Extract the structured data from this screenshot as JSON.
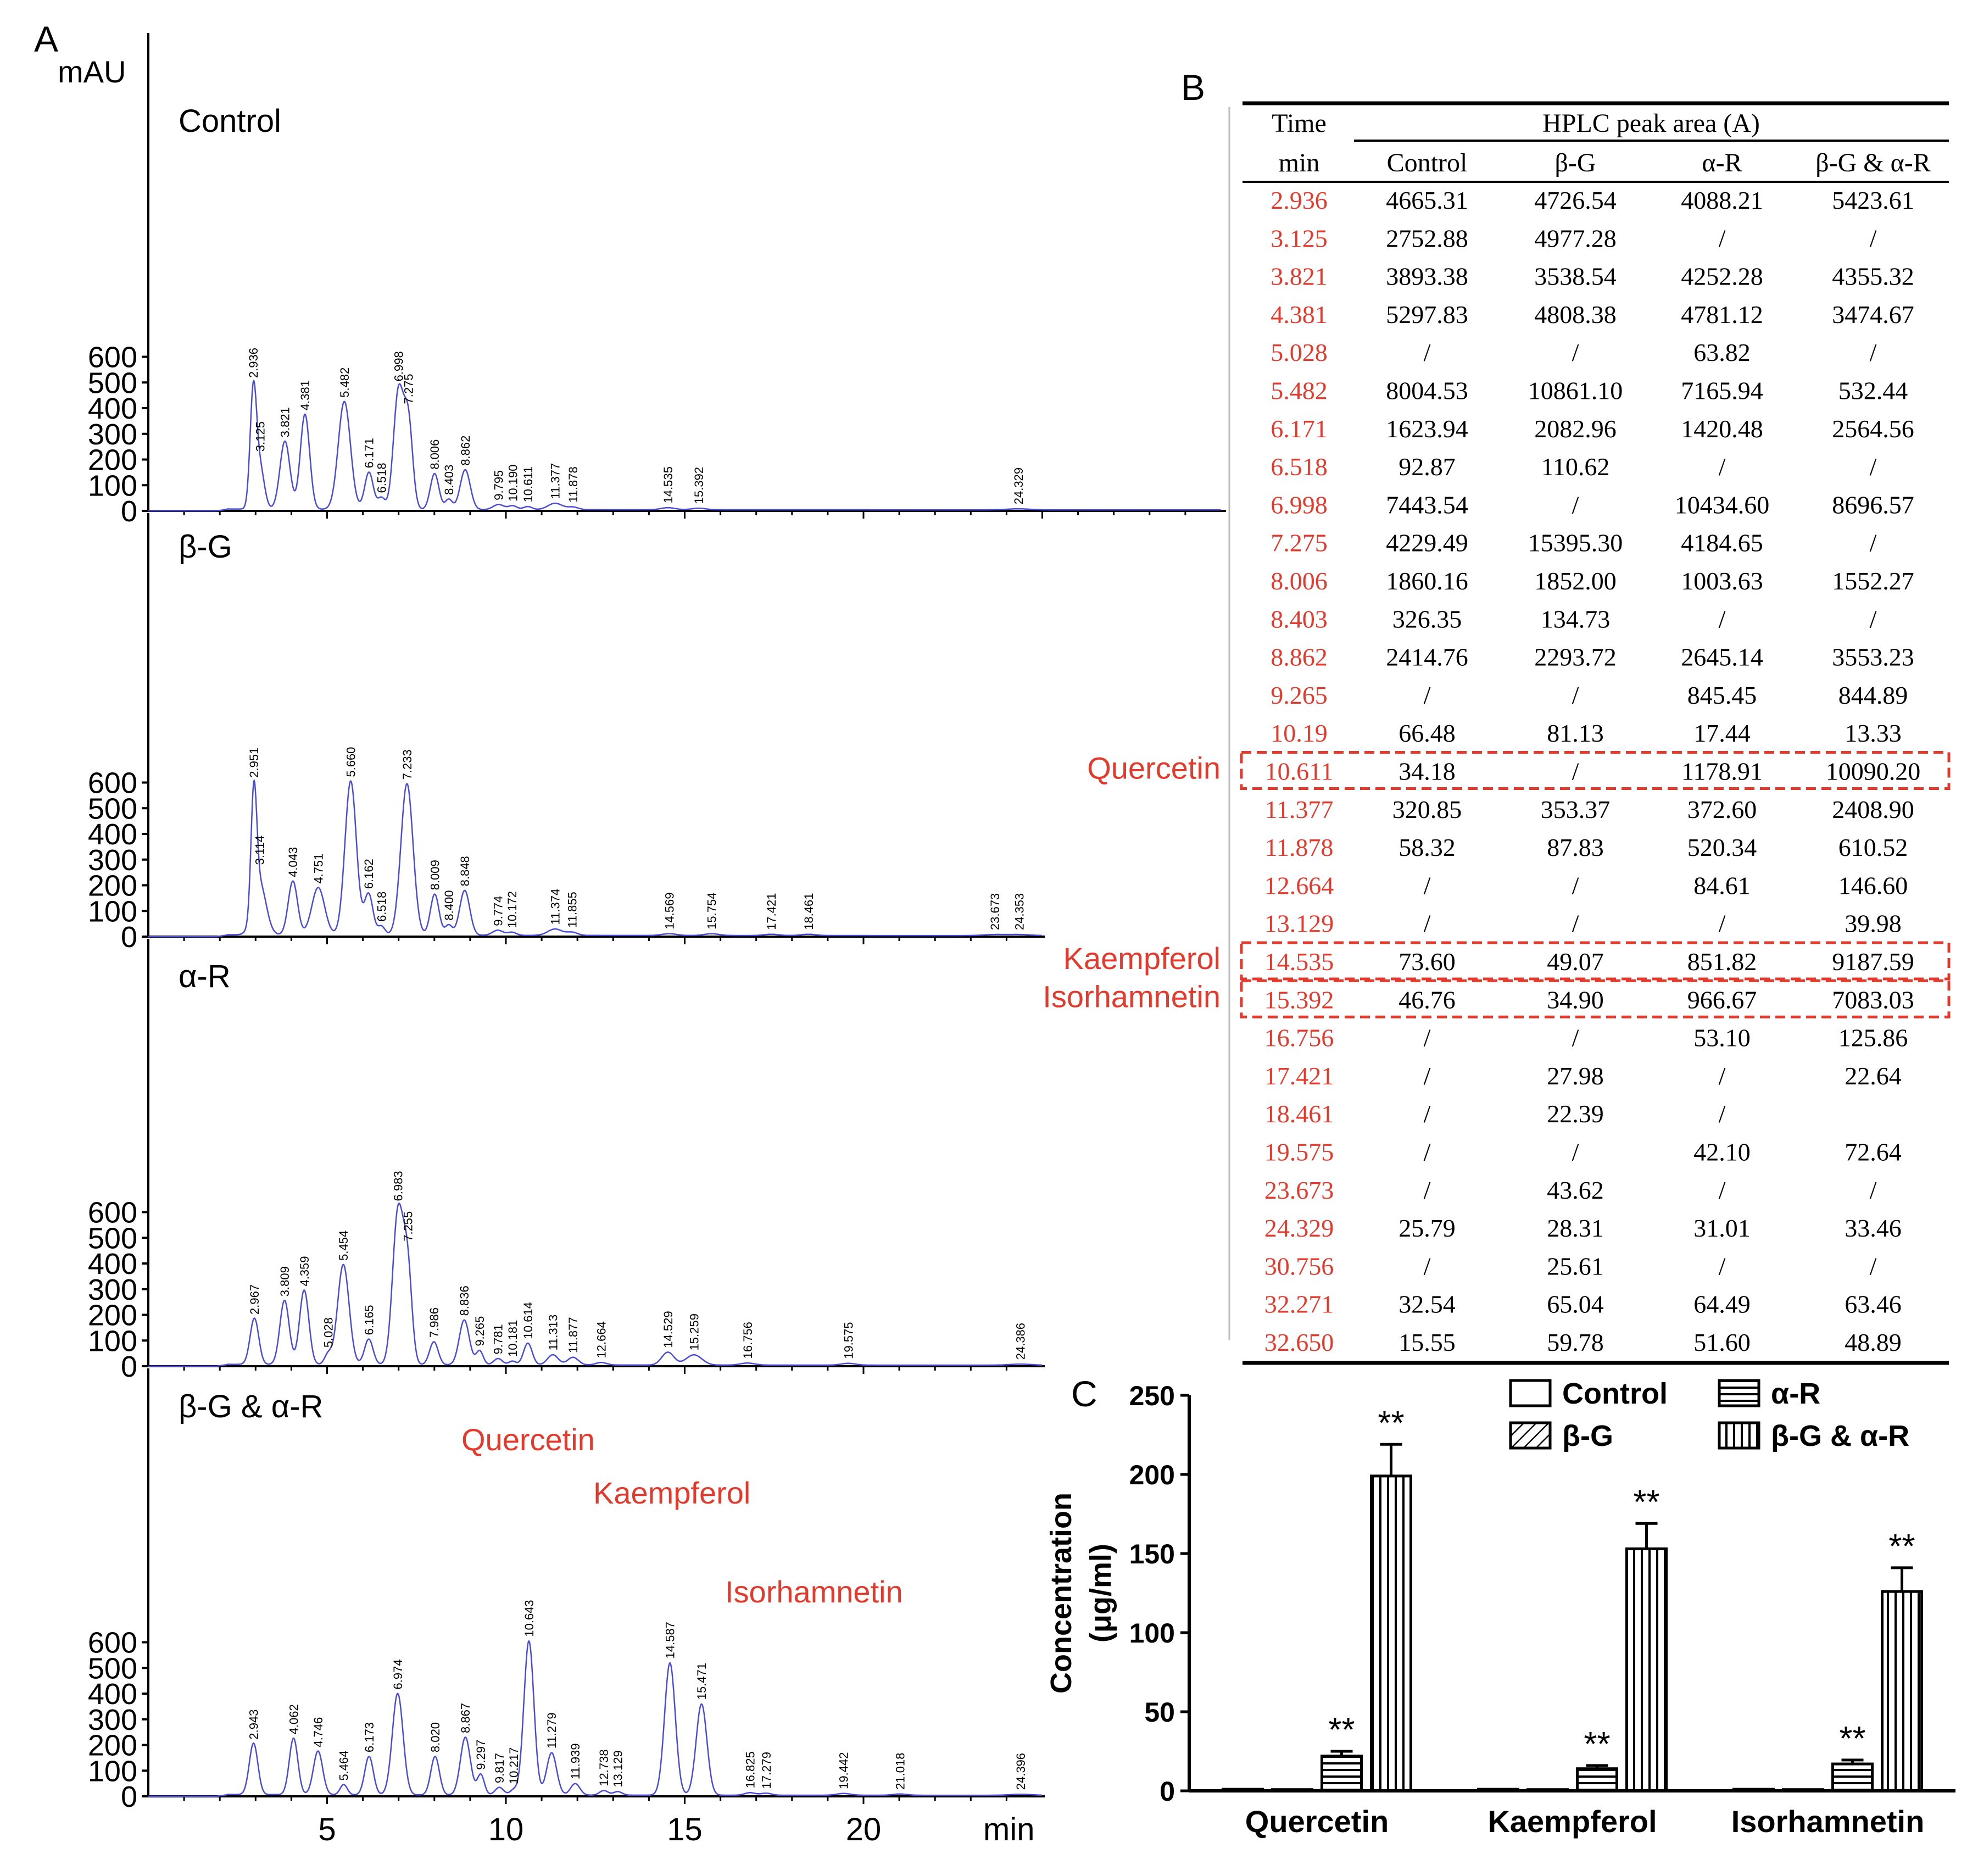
{
  "panel_labels": {
    "a": "A",
    "b": "B",
    "c": "C"
  },
  "colors": {
    "trace": "#4a4cd6",
    "red": "#e23b2e",
    "black": "#000000"
  },
  "chart_data": [
    {
      "type": "line",
      "id": "chromatograms",
      "ylabel": "mAU",
      "xlabel": "min",
      "xlim": [
        0,
        25
      ],
      "xticks": [
        "5",
        "10",
        "15",
        "20"
      ],
      "ylim": [
        0,
        620
      ],
      "yticks": [
        "0",
        "100",
        "200",
        "300",
        "400",
        "500",
        "600"
      ],
      "panels": [
        {
          "name": "Control",
          "xmax": 30,
          "peaks": [
            [
              2.936,
              450,
              0.09
            ],
            [
              3.125,
              160,
              0.12
            ],
            [
              3.821,
              265,
              0.14
            ],
            [
              4.381,
              370,
              0.13
            ],
            [
              5.482,
              420,
              0.17
            ],
            [
              6.171,
              145,
              0.12
            ],
            [
              6.518,
              45,
              0.1
            ],
            [
              6.998,
              460,
              0.14
            ],
            [
              7.275,
              330,
              0.12
            ],
            [
              8.006,
              140,
              0.12
            ],
            [
              8.403,
              40,
              0.1
            ],
            [
              8.862,
              155,
              0.14
            ],
            [
              9.795,
              20,
              0.15
            ],
            [
              10.19,
              15,
              0.12
            ],
            [
              10.611,
              12,
              0.12
            ],
            [
              11.377,
              25,
              0.2
            ],
            [
              11.878,
              10,
              0.15
            ],
            [
              14.535,
              8,
              0.2
            ],
            [
              15.392,
              6,
              0.2
            ],
            [
              24.329,
              4,
              0.3
            ]
          ],
          "labels": [
            "2.936",
            "3.125",
            "3.821",
            "4.381",
            "5.482",
            "6.171",
            "6.518",
            "6.998",
            "7.275",
            "8.006",
            "8.403",
            "8.862",
            "9.795",
            "10.190",
            "10.611",
            "11.377",
            "11.878",
            "14.535",
            "15.392",
            "24.329"
          ],
          "names": []
        },
        {
          "name": "β-G",
          "xmax": 25,
          "peaks": [
            [
              2.951,
              465,
              0.08
            ],
            [
              3.114,
              200,
              0.18
            ],
            [
              4.043,
              210,
              0.13
            ],
            [
              4.751,
              185,
              0.18
            ],
            [
              5.66,
              600,
              0.16
            ],
            [
              6.162,
              160,
              0.12
            ],
            [
              6.518,
              35,
              0.1
            ],
            [
              7.233,
              590,
              0.17
            ],
            [
              8.009,
              160,
              0.12
            ],
            [
              8.4,
              40,
              0.1
            ],
            [
              8.848,
              175,
              0.14
            ],
            [
              9.774,
              20,
              0.15
            ],
            [
              10.172,
              12,
              0.12
            ],
            [
              11.374,
              25,
              0.2
            ],
            [
              11.855,
              12,
              0.15
            ],
            [
              14.569,
              7,
              0.2
            ],
            [
              15.754,
              7,
              0.2
            ],
            [
              17.421,
              5,
              0.2
            ],
            [
              18.461,
              5,
              0.2
            ],
            [
              23.673,
              4,
              0.3
            ],
            [
              24.353,
              4,
              0.3
            ]
          ],
          "labels": [
            "2.951",
            "3.114",
            "4.043",
            "4.751",
            "5.660",
            "6.162",
            "6.518",
            "7.233",
            "8.009",
            "8.400",
            "8.848",
            "9.774",
            "10.172",
            "11.374",
            "11.855",
            "14.569",
            "15.754",
            "17.421",
            "18.461",
            "23.673",
            "24.353"
          ],
          "names": []
        },
        {
          "name": "α-R",
          "xmax": 25,
          "peaks": [
            [
              2.967,
              180,
              0.12
            ],
            [
              3.809,
              250,
              0.13
            ],
            [
              4.359,
              290,
              0.13
            ],
            [
              5.028,
              40,
              0.1
            ],
            [
              5.454,
              390,
              0.16
            ],
            [
              6.165,
              100,
              0.12
            ],
            [
              6.983,
              595,
              0.15
            ],
            [
              7.255,
              350,
              0.12
            ],
            [
              7.986,
              90,
              0.12
            ],
            [
              8.836,
              175,
              0.14
            ],
            [
              9.265,
              55,
              0.1
            ],
            [
              9.781,
              25,
              0.12
            ],
            [
              10.181,
              15,
              0.1
            ],
            [
              10.614,
              85,
              0.12
            ],
            [
              11.313,
              40,
              0.15
            ],
            [
              11.877,
              30,
              0.15
            ],
            [
              12.664,
              10,
              0.15
            ],
            [
              14.529,
              50,
              0.17
            ],
            [
              15.259,
              40,
              0.22
            ],
            [
              16.756,
              8,
              0.2
            ],
            [
              19.575,
              7,
              0.2
            ],
            [
              24.386,
              4,
              0.3
            ]
          ],
          "labels": [
            "2.967",
            "3.809",
            "4.359",
            "5.028",
            "5.454",
            "6.165",
            "6.983",
            "7.255",
            "7.986",
            "8.836",
            "9.265",
            "9.781",
            "10.181",
            "10.614",
            "11.313",
            "11.877",
            "12.664",
            "14.529",
            "15.259",
            "16.756",
            "19.575",
            "24.386"
          ],
          "names": []
        },
        {
          "name": "β-G & α-R",
          "xmax": 25,
          "peaks": [
            [
              2.943,
              200,
              0.12
            ],
            [
              4.062,
              220,
              0.12
            ],
            [
              4.746,
              170,
              0.13
            ],
            [
              5.464,
              40,
              0.1
            ],
            [
              6.173,
              150,
              0.12
            ],
            [
              6.974,
              395,
              0.15
            ],
            [
              8.02,
              150,
              0.12
            ],
            [
              8.867,
              225,
              0.14
            ],
            [
              9.297,
              80,
              0.1
            ],
            [
              9.817,
              30,
              0.12
            ],
            [
              10.217,
              20,
              0.1
            ],
            [
              10.643,
              600,
              0.14
            ],
            [
              11.279,
              165,
              0.14
            ],
            [
              11.939,
              45,
              0.13
            ],
            [
              12.738,
              18,
              0.12
            ],
            [
              13.129,
              14,
              0.12
            ],
            [
              14.587,
              515,
              0.15
            ],
            [
              15.471,
              355,
              0.15
            ],
            [
              16.825,
              10,
              0.15
            ],
            [
              17.279,
              8,
              0.15
            ],
            [
              19.442,
              7,
              0.2
            ],
            [
              21.018,
              5,
              0.2
            ],
            [
              24.396,
              4,
              0.3
            ]
          ],
          "labels": [
            "2.943",
            "4.062",
            "4.746",
            "5.464",
            "6.173",
            "6.974",
            "8.020",
            "8.867",
            "9.297",
            "9.817",
            "10.217",
            "10.643",
            "11.279",
            "11.939",
            "12.738",
            "13.129",
            "14.587",
            "15.471",
            "16.825",
            "17.279",
            "19.442",
            "21.018",
            "24.396"
          ],
          "names": [
            "Quercetin",
            "Kaempferol",
            "Isorhamnetin"
          ]
        }
      ]
    },
    {
      "type": "table",
      "id": "hplc-table",
      "header_group": "HPLC peak area (A)",
      "time_header": [
        "Time",
        "min"
      ],
      "columns": [
        "Control",
        "β-G",
        "α-R",
        "β-G & α-R"
      ],
      "rows": [
        [
          "2.936",
          "4665.31",
          "4726.54",
          "4088.21",
          "5423.61"
        ],
        [
          "3.125",
          "2752.88",
          "4977.28",
          "/",
          "/"
        ],
        [
          "3.821",
          "3893.38",
          "3538.54",
          "4252.28",
          "4355.32"
        ],
        [
          "4.381",
          "5297.83",
          "4808.38",
          "4781.12",
          "3474.67"
        ],
        [
          "5.028",
          "/",
          "/",
          "63.82",
          "/"
        ],
        [
          "5.482",
          "8004.53",
          "10861.10",
          "7165.94",
          "532.44"
        ],
        [
          "6.171",
          "1623.94",
          "2082.96",
          "1420.48",
          "2564.56"
        ],
        [
          "6.518",
          "92.87",
          "110.62",
          "/",
          "/"
        ],
        [
          "6.998",
          "7443.54",
          "/",
          "10434.60",
          "8696.57"
        ],
        [
          "7.275",
          "4229.49",
          "15395.30",
          "4184.65",
          "/"
        ],
        [
          "8.006",
          "1860.16",
          "1852.00",
          "1003.63",
          "1552.27"
        ],
        [
          "8.403",
          "326.35",
          "134.73",
          "/",
          "/"
        ],
        [
          "8.862",
          "2414.76",
          "2293.72",
          "2645.14",
          "3553.23"
        ],
        [
          "9.265",
          "/",
          "/",
          "845.45",
          "844.89"
        ],
        [
          "10.19",
          "66.48",
          "81.13",
          "17.44",
          "13.33"
        ],
        [
          "10.611",
          "34.18",
          "/",
          "1178.91",
          "10090.20"
        ],
        [
          "11.377",
          "320.85",
          "353.37",
          "372.60",
          "2408.90"
        ],
        [
          "11.878",
          "58.32",
          "87.83",
          "520.34",
          "610.52"
        ],
        [
          "12.664",
          "/",
          "/",
          "84.61",
          "146.60"
        ],
        [
          "13.129",
          "/",
          "/",
          "/",
          "39.98"
        ],
        [
          "14.535",
          "73.60",
          "49.07",
          "851.82",
          "9187.59"
        ],
        [
          "15.392",
          "46.76",
          "34.90",
          "966.67",
          "7083.03"
        ],
        [
          "16.756",
          "/",
          "/",
          "53.10",
          "125.86"
        ],
        [
          "17.421",
          "/",
          "27.98",
          "/",
          "22.64"
        ],
        [
          "18.461",
          "/",
          "22.39",
          "/",
          ""
        ],
        [
          "19.575",
          "/",
          "/",
          "42.10",
          "72.64"
        ],
        [
          "23.673",
          "/",
          "43.62",
          "/",
          "/"
        ],
        [
          "24.329",
          "25.79",
          "28.31",
          "31.01",
          "33.46"
        ],
        [
          "30.756",
          "/",
          "25.61",
          "/",
          "/"
        ],
        [
          "32.271",
          "32.54",
          "65.04",
          "64.49",
          "63.46"
        ],
        [
          "32.650",
          "15.55",
          "59.78",
          "51.60",
          "48.89"
        ]
      ],
      "highlights": [
        {
          "row": 15,
          "label": "Quercetin"
        },
        {
          "row": 20,
          "label": "Kaempferol"
        },
        {
          "row": 21,
          "label": "Isorhamnetin"
        }
      ]
    },
    {
      "type": "bar",
      "id": "concentration",
      "ylabel_line1": "Concentration",
      "ylabel_line2": "(μg/ml)",
      "ylim": [
        0,
        250
      ],
      "yticks": [
        "0",
        "50",
        "100",
        "150",
        "200",
        "250"
      ],
      "categories": [
        "Quercetin",
        "Kaempferol",
        "Isorhamnetin"
      ],
      "series": [
        {
          "name": "Control",
          "pattern": "none",
          "values": [
            1,
            1,
            1
          ],
          "errors": [
            0,
            0,
            0
          ],
          "sig": [
            "",
            "",
            ""
          ]
        },
        {
          "name": "β-G",
          "pattern": "diag",
          "values": [
            0.8,
            0.8,
            0.8
          ],
          "errors": [
            0,
            0,
            0
          ],
          "sig": [
            "",
            "",
            ""
          ]
        },
        {
          "name": "α-R",
          "pattern": "horiz",
          "values": [
            22,
            14,
            17
          ],
          "errors": [
            3,
            2,
            2.5
          ],
          "sig": [
            "**",
            "**",
            "**"
          ]
        },
        {
          "name": "β-G & α-R",
          "pattern": "vert",
          "values": [
            199,
            153,
            126
          ],
          "errors": [
            20,
            16,
            15
          ],
          "sig": [
            "**",
            "**",
            "**"
          ]
        }
      ],
      "legend": [
        "Control",
        "α-R",
        "β-G",
        "β-G & α-R"
      ]
    }
  ]
}
